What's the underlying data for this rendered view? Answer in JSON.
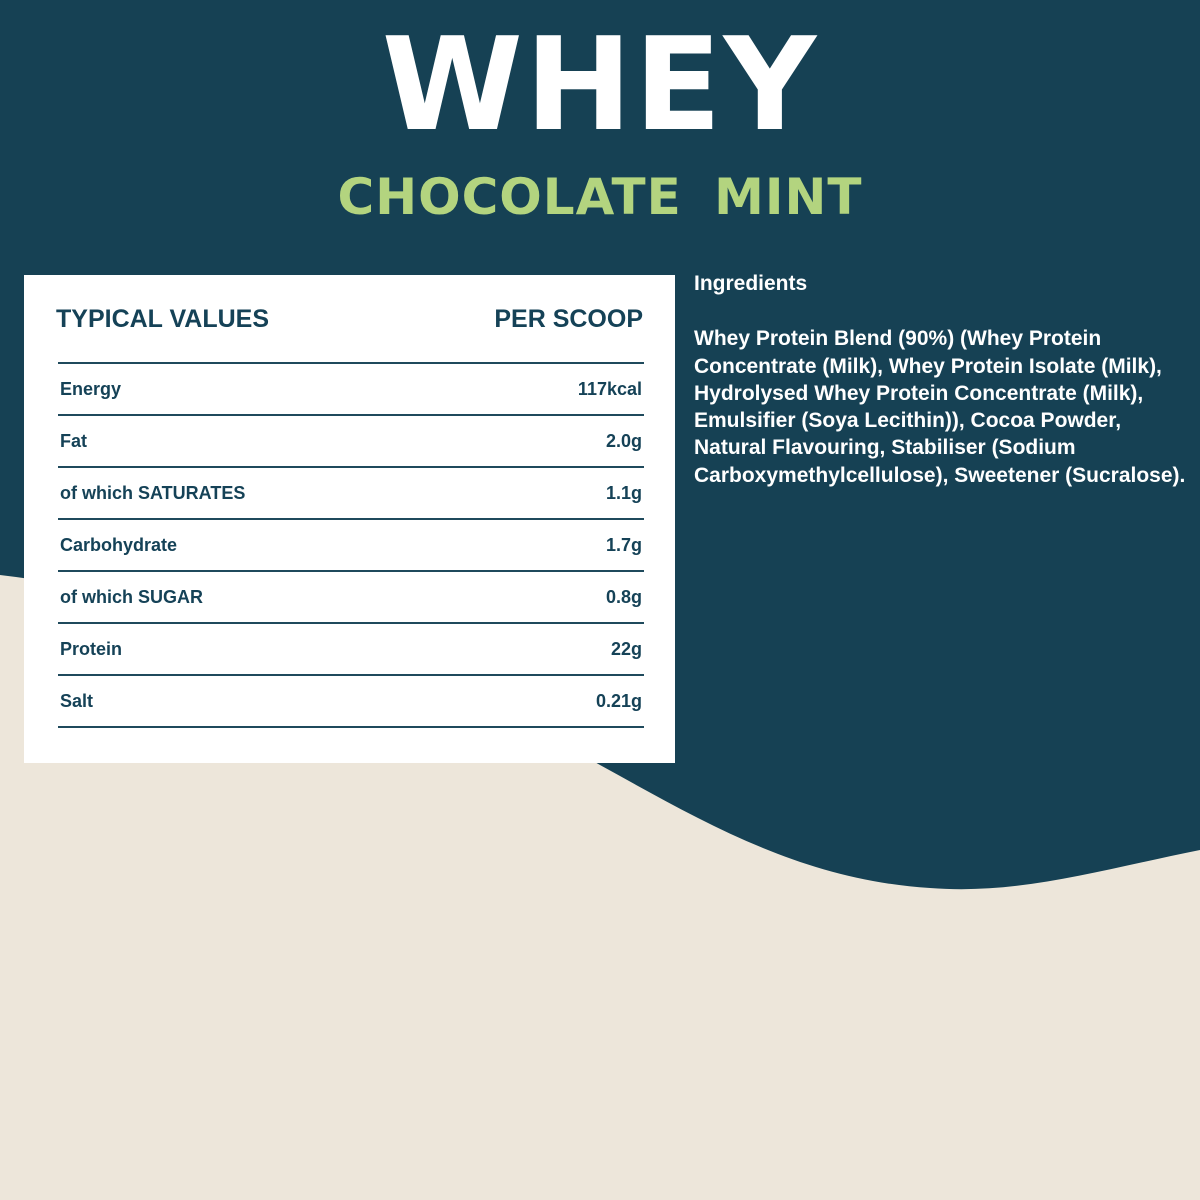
{
  "colors": {
    "dark": "#164154",
    "beige": "#ede6da",
    "accent": "#b3d47f",
    "card": "#ffffff"
  },
  "header": {
    "title": "WHEY",
    "flavour": "CHOCOLATE  MINT"
  },
  "nutrition": {
    "header_left": "TYPICAL VALUES",
    "header_right": "PER SCOOP",
    "rows": [
      {
        "label": "Energy",
        "value": "117kcal"
      },
      {
        "label": "Fat",
        "value": "2.0g"
      },
      {
        "label": "of which SATURATES",
        "value": "1.1g"
      },
      {
        "label": "Carbohydrate",
        "value": "1.7g"
      },
      {
        "label": "of which SUGAR",
        "value": "0.8g"
      },
      {
        "label": "Protein",
        "value": "22g"
      },
      {
        "label": "Salt",
        "value": "0.21g"
      }
    ]
  },
  "ingredients": {
    "heading": "Ingredients",
    "text": "Whey Protein Blend (90%) (Whey Protein Concentrate (Milk), Whey Protein Isolate (Milk), Hydrolysed Whey Protein Concentrate (Milk), Emulsifier (Soya Lecithin)), Cocoa Powder, Natural Flavouring, Stabiliser (Sodium Carboxymethylcellulose), Sweetener (Sucralose)."
  }
}
